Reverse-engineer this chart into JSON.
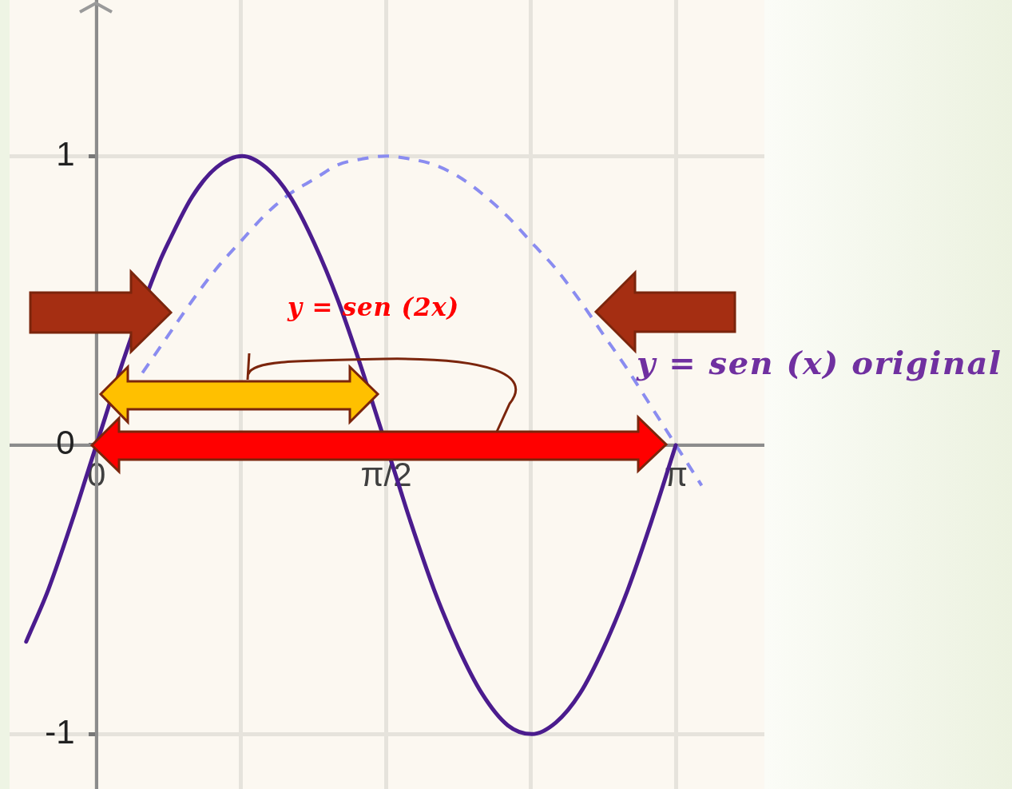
{
  "chart_data": {
    "type": "line",
    "annotations": [
      "y = sen (2x)",
      "y = sen (x) original"
    ],
    "series": [
      {
        "color": "#4b1c8e",
        "line_style": "solid",
        "x": [
          -0.38,
          -0.26,
          -0.13,
          -0.05,
          0.05,
          0.15,
          0.34,
          0.39,
          0.52,
          0.65,
          0.79,
          0.92,
          1.05,
          1.18,
          1.31,
          1.44,
          1.5,
          1.64,
          1.7,
          1.83,
          1.96,
          2.09,
          2.23,
          2.36,
          2.49,
          2.62,
          2.75,
          2.88,
          3.01,
          3.14
        ],
        "values": [
          -0.68,
          -0.5,
          -0.26,
          -0.1,
          0.1,
          0.3,
          0.63,
          0.7,
          0.86,
          0.96,
          1,
          0.96,
          0.86,
          0.7,
          0.5,
          0.26,
          0.14,
          -0.14,
          -0.26,
          -0.5,
          -0.7,
          -0.86,
          -0.97,
          -1,
          -0.96,
          -0.86,
          -0.7,
          -0.5,
          -0.26,
          0
        ]
      },
      {
        "color": "#8a8cf0",
        "line_style": "dashed",
        "x": [
          0.25,
          0.39,
          0.52,
          0.65,
          0.79,
          0.92,
          1.05,
          1.18,
          1.31,
          1.44,
          1.57,
          1.7,
          1.83,
          1.96,
          2.09,
          2.23,
          2.36,
          2.49,
          2.62,
          2.75,
          2.88,
          3.01,
          3.14,
          3.28
        ],
        "values": [
          0.25,
          0.38,
          0.5,
          0.61,
          0.71,
          0.8,
          0.87,
          0.92,
          0.97,
          0.99,
          1,
          0.99,
          0.97,
          0.93,
          0.87,
          0.79,
          0.7,
          0.61,
          0.5,
          0.38,
          0.26,
          0.13,
          0,
          -0.14
        ]
      }
    ],
    "xlim": [
      -0.47,
      3.62
    ],
    "ylim": [
      -1.19,
      1.54
    ],
    "xticks": [
      0,
      {
        "value": 0.785,
        "label": null
      },
      {
        "value": 1.571,
        "label": "π/2"
      },
      {
        "value": 2.356,
        "label": null
      },
      {
        "value": 3.142,
        "label": "π"
      }
    ],
    "yticks": [
      -1,
      0,
      1
    ],
    "grid": true,
    "marker": "none"
  }
}
